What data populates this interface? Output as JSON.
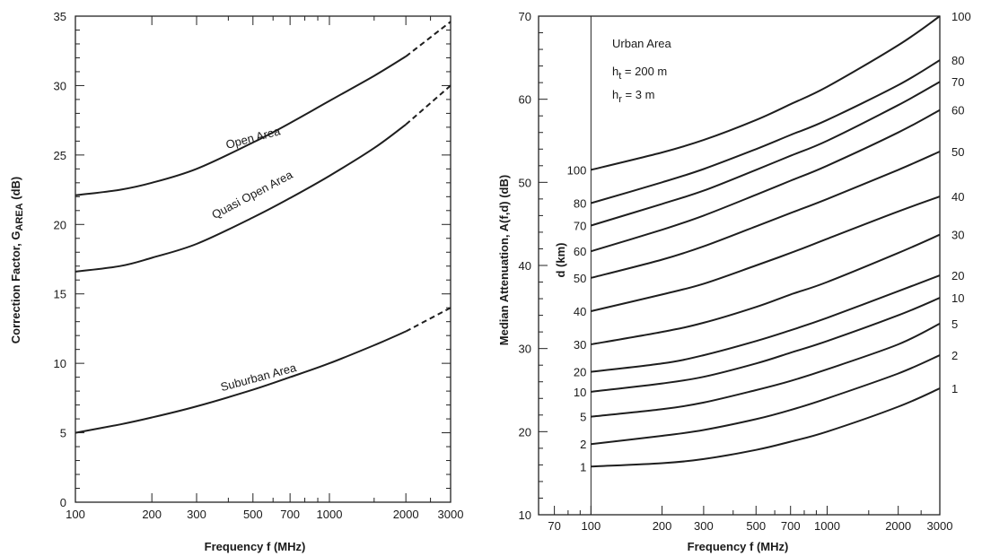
{
  "chart_data": [
    {
      "type": "line",
      "xlabel": "Frequency  f  (MHz)",
      "ylabel": "Correction Factor, G",
      "ylabel_sub": "AREA",
      "ylabel_unit": " (dB)",
      "xscale": "log",
      "xlim": [
        100,
        3000
      ],
      "ylim": [
        0,
        35
      ],
      "x_tick_labels": [
        "100",
        "200",
        "300",
        "500",
        "700",
        "1000",
        "2000",
        "3000"
      ],
      "x_ticks": [
        100,
        200,
        300,
        500,
        700,
        1000,
        2000,
        3000
      ],
      "y_ticks": [
        0,
        5,
        10,
        15,
        20,
        25,
        30,
        35
      ],
      "y_tick_labels": [
        "0",
        "5",
        "10",
        "15",
        "20",
        "25",
        "30",
        "35"
      ],
      "solid_until": 2000,
      "series": [
        {
          "name": "Open Area",
          "x": [
            100,
            150,
            200,
            300,
            500,
            700,
            1000,
            1500,
            2000,
            3000
          ],
          "y": [
            22.1,
            22.5,
            23.0,
            24.0,
            25.9,
            27.3,
            28.9,
            30.7,
            32.1,
            34.6
          ]
        },
        {
          "name": "Quasi Open Area",
          "x": [
            100,
            150,
            200,
            300,
            500,
            700,
            1000,
            1500,
            2000,
            3000
          ],
          "y": [
            16.6,
            17.0,
            17.6,
            18.6,
            20.5,
            21.9,
            23.5,
            25.5,
            27.2,
            30.0
          ]
        },
        {
          "name": "Suburban Area",
          "x": [
            100,
            150,
            200,
            300,
            500,
            700,
            1000,
            1500,
            2000,
            3000
          ],
          "y": [
            5.0,
            5.6,
            6.1,
            6.9,
            8.1,
            9.0,
            10.0,
            11.3,
            12.3,
            14.0
          ]
        }
      ]
    },
    {
      "type": "line",
      "xlabel": "Frequency  f  (MHz)",
      "ylabel": "Median Attenuation, A(f,d)  (dB)",
      "xscale": "log",
      "xlim": [
        60,
        3000
      ],
      "ylim": [
        10,
        70
      ],
      "x_tick_labels": [
        "70",
        "100",
        "200",
        "300",
        "500",
        "700",
        "1000",
        "2000",
        "3000"
      ],
      "x_ticks": [
        70,
        100,
        200,
        300,
        500,
        700,
        1000,
        2000,
        3000
      ],
      "y_ticks": [
        10,
        20,
        30,
        40,
        50,
        60,
        70
      ],
      "y_tick_labels": [
        "10",
        "20",
        "30",
        "40",
        "50",
        "60",
        "70"
      ],
      "curve_x_start": 100,
      "annotation": {
        "title": "Urban Area",
        "ht_main": "h",
        "ht_sub": "t",
        "ht_value": " = 200 m",
        "hr_main": "h",
        "hr_sub": "r",
        "hr_value": " = 3 m"
      },
      "d_axis_label": "d (km)",
      "series": [
        {
          "name": "100",
          "x": [
            100,
            200,
            300,
            500,
            700,
            1000,
            2000,
            3000
          ],
          "y": [
            51.5,
            53.6,
            55.1,
            57.5,
            59.4,
            61.5,
            66.5,
            70.0
          ]
        },
        {
          "name": "80",
          "x": [
            100,
            200,
            300,
            500,
            700,
            1000,
            2000,
            3000
          ],
          "y": [
            47.5,
            50.0,
            51.6,
            54.0,
            55.7,
            57.5,
            61.7,
            64.7
          ]
        },
        {
          "name": "70",
          "x": [
            100,
            200,
            300,
            500,
            700,
            1000,
            2000,
            3000
          ],
          "y": [
            44.8,
            47.4,
            49.0,
            51.5,
            53.2,
            55.0,
            59.3,
            62.1
          ]
        },
        {
          "name": "60",
          "x": [
            100,
            200,
            300,
            500,
            700,
            1000,
            2000,
            3000
          ],
          "y": [
            41.7,
            44.3,
            46.0,
            48.5,
            50.2,
            52.0,
            56.0,
            58.7
          ]
        },
        {
          "name": "50",
          "x": [
            100,
            200,
            300,
            500,
            700,
            1000,
            2000,
            3000
          ],
          "y": [
            38.5,
            40.7,
            42.3,
            44.7,
            46.3,
            48.0,
            51.5,
            53.7
          ]
        },
        {
          "name": "40",
          "x": [
            100,
            200,
            300,
            500,
            700,
            1000,
            2000,
            3000
          ],
          "y": [
            34.5,
            36.5,
            37.8,
            40.0,
            41.5,
            43.2,
            46.5,
            48.3
          ]
        },
        {
          "name": "30",
          "x": [
            100,
            200,
            300,
            500,
            700,
            1000,
            2000,
            3000
          ],
          "y": [
            30.5,
            32.0,
            33.1,
            35.0,
            36.5,
            38.0,
            41.5,
            43.7
          ]
        },
        {
          "name": "20",
          "x": [
            100,
            200,
            300,
            500,
            700,
            1000,
            2000,
            3000
          ],
          "y": [
            27.2,
            28.2,
            29.2,
            30.9,
            32.2,
            33.7,
            36.9,
            38.8
          ]
        },
        {
          "name": "10",
          "x": [
            100,
            200,
            300,
            500,
            700,
            1000,
            2000,
            3000
          ],
          "y": [
            24.8,
            25.8,
            26.6,
            28.2,
            29.5,
            30.9,
            34.0,
            36.1
          ]
        },
        {
          "name": "5",
          "x": [
            100,
            200,
            300,
            500,
            700,
            1000,
            2000,
            3000
          ],
          "y": [
            21.8,
            22.7,
            23.5,
            25.0,
            26.1,
            27.5,
            30.5,
            33.0
          ]
        },
        {
          "name": "2",
          "x": [
            100,
            200,
            300,
            500,
            700,
            1000,
            2000,
            3000
          ],
          "y": [
            18.5,
            19.5,
            20.2,
            21.5,
            22.6,
            24.0,
            27.0,
            29.2
          ]
        },
        {
          "name": "1",
          "x": [
            100,
            200,
            300,
            500,
            700,
            1000,
            2000,
            3000
          ],
          "y": [
            15.8,
            16.2,
            16.7,
            17.8,
            18.8,
            20.0,
            23.0,
            25.2
          ]
        }
      ]
    }
  ]
}
